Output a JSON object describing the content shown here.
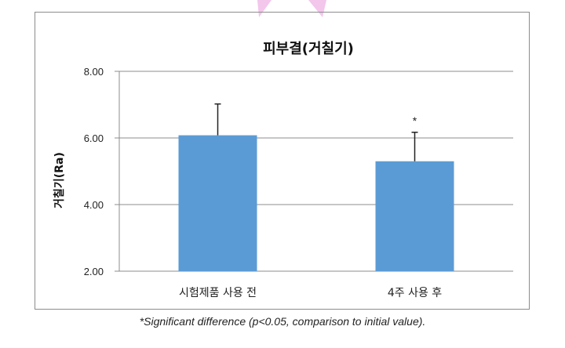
{
  "chart_data": {
    "type": "bar",
    "title": "피부결(거칠기)",
    "ylabel": "거칠기(Ra)",
    "xlabel": "",
    "categories": [
      "시험제품 사용 전",
      "4주 사용 후"
    ],
    "values": [
      6.08,
      5.3
    ],
    "error_upper": [
      7.02,
      6.17
    ],
    "ylim": [
      2.0,
      8.0
    ],
    "yticks": [
      "2.00",
      "4.00",
      "6.00",
      "8.00"
    ],
    "significance_markers": [
      "",
      "*"
    ],
    "grid": true,
    "bar_color": "#5b9bd5",
    "legend": "none"
  },
  "footnote": "*Significant difference (p<0.05, comparison to initial value).",
  "colors": {
    "grid": "#8c8c8c",
    "decoration": "#f3c6ec"
  }
}
